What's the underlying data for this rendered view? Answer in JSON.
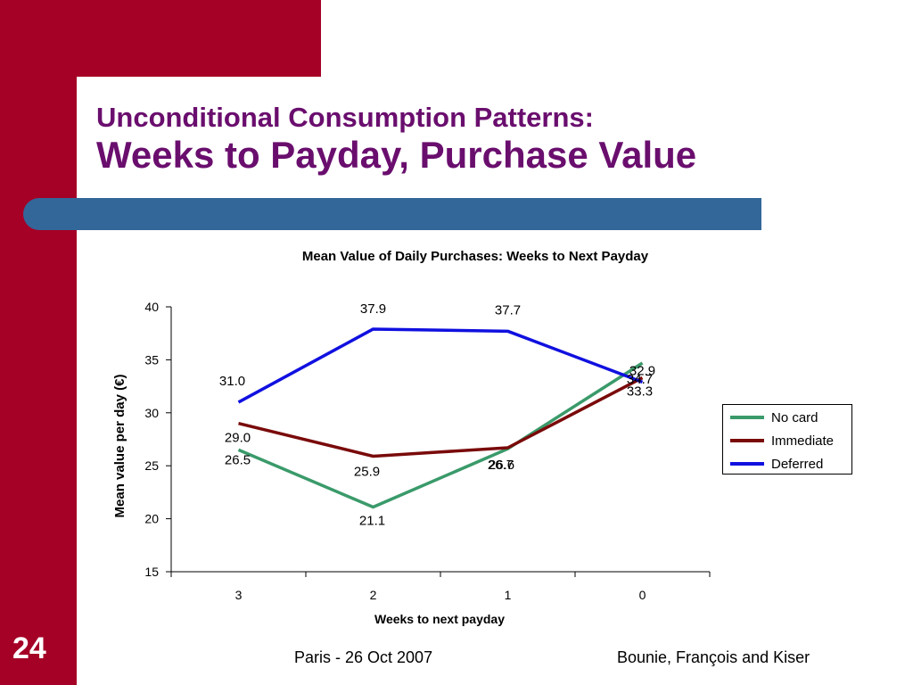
{
  "slide": {
    "title_line1": "Unconditional Consumption Patterns:",
    "title_line2": "Weeks to Payday, Purchase Value",
    "slide_number": "24",
    "footer_left": "Paris - 26 Oct 2007",
    "footer_right": "Bounie, François and Kiser"
  },
  "colors": {
    "sidebar": "#a50026",
    "band": "#336699",
    "title": "#6a0e6e"
  },
  "chart_data": {
    "type": "line",
    "title": "Mean Value of Daily Purchases: Weeks to Next Payday",
    "xlabel": "Weeks to next payday",
    "ylabel": "Mean value per day (€)",
    "categories": [
      "3",
      "2",
      "1",
      "0"
    ],
    "ylim": [
      15,
      40
    ],
    "yticks": [
      "15",
      "20",
      "25",
      "30",
      "35",
      "40"
    ],
    "grid": false,
    "legend": "right",
    "series": [
      {
        "name": "No card",
        "color": "#3a9a6a",
        "values": [
          26.5,
          21.1,
          26.6,
          34.7
        ],
        "labels": [
          "26.5",
          "21.1",
          "26.6",
          "34.7"
        ]
      },
      {
        "name": "Immediate",
        "color": "#7a0a0a",
        "values": [
          29.0,
          25.9,
          26.7,
          33.3
        ],
        "labels": [
          "29.0",
          "25.9",
          "26.7",
          "33.3"
        ]
      },
      {
        "name": "Deferred",
        "color": "#1010e0",
        "values": [
          31.0,
          37.9,
          37.7,
          32.9
        ],
        "labels": [
          "31.0",
          "37.9",
          "37.7",
          "32.9"
        ]
      }
    ]
  }
}
